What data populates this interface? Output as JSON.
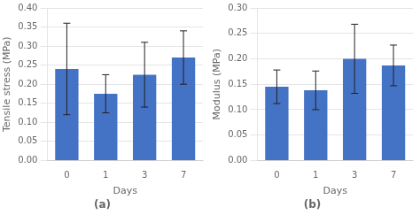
{
  "chart_data": [
    {
      "type": "bar",
      "title": "(a)",
      "xlabel": "Days",
      "ylabel": "Tensile stress (MPa)",
      "categories": [
        "0",
        "1",
        "3",
        "7"
      ],
      "values": [
        0.24,
        0.175,
        0.225,
        0.27
      ],
      "errors": [
        0.12,
        0.05,
        0.085,
        0.07
      ],
      "color": "#4472C4",
      "ylim": [
        0.0,
        0.4
      ],
      "yticks": [
        {
          "value": 0.0,
          "label": "0.00"
        },
        0.05,
        {
          "value": 0.1,
          "label": "0.10"
        },
        0.15,
        {
          "value": 0.2,
          "label": "0.20"
        },
        0.25,
        {
          "value": 0.3,
          "label": "0.30"
        },
        0.35,
        {
          "value": 0.4,
          "label": "0.40"
        }
      ],
      "grid": "y"
    },
    {
      "type": "bar",
      "title": "(b)",
      "xlabel": "Days",
      "ylabel": "Modulus (MPa)",
      "categories": [
        "0",
        "1",
        "3",
        "7"
      ],
      "values": [
        0.145,
        0.138,
        0.2,
        0.187
      ],
      "errors": [
        0.033,
        0.038,
        0.068,
        0.04
      ],
      "color": "#4472C4",
      "ylim": [
        0.0,
        0.3
      ],
      "yticks": [
        {
          "value": 0.0,
          "label": "0.00"
        },
        0.05,
        {
          "value": 0.1,
          "label": "0.10"
        },
        0.15,
        {
          "value": 0.2,
          "label": "0.20"
        },
        0.25,
        {
          "value": 0.3,
          "label": "0.30"
        }
      ],
      "grid": "y"
    }
  ]
}
